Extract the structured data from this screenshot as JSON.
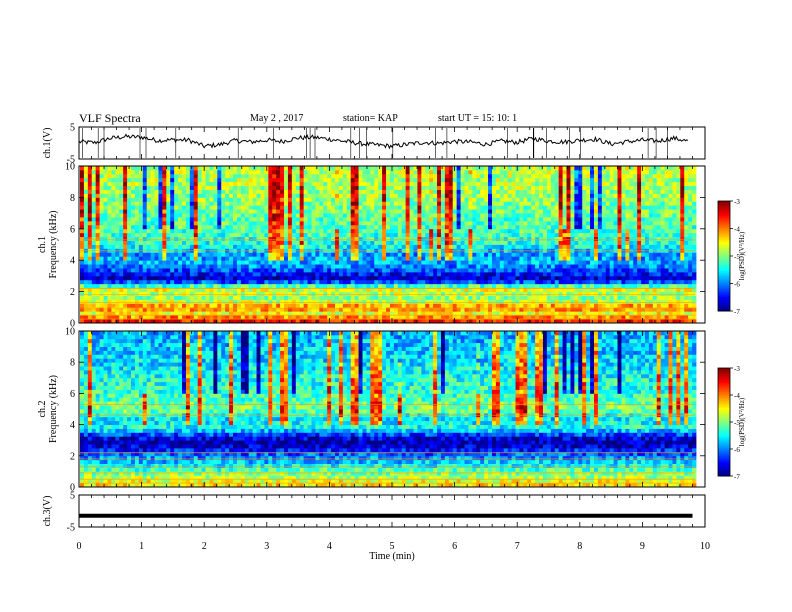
{
  "header": {
    "title": "VLF Spectra",
    "date": "May 2 , 2017",
    "station": "station= KAP",
    "start": "start UT = 15: 10: 1"
  },
  "chart_data": [
    {
      "type": "line",
      "panel": "ch1-waveform",
      "ylabel": "ch.1(V)",
      "ylim": [
        -5,
        5
      ],
      "yticks": [
        "5",
        "-5"
      ],
      "xlim": [
        0,
        10
      ],
      "series": [
        {
          "x": [
            0,
            0.25,
            0.5,
            0.75,
            1,
            1.25,
            1.5,
            1.75,
            2,
            2.25,
            2.5,
            2.75,
            3,
            3.25,
            3.5,
            3.75,
            4,
            4.25,
            4.5,
            4.75,
            5,
            5.25,
            5.5,
            5.75,
            6,
            6.25,
            6.5,
            6.75,
            7,
            7.25,
            7.5,
            7.75,
            8,
            8.25,
            8.5,
            8.75,
            9,
            9.25,
            9.5,
            9.75
          ],
          "values": [
            0.4,
            0.1,
            1.5,
            2.0,
            1.8,
            0.8,
            1.0,
            0.9,
            -1.0,
            -0.5,
            0.8,
            0.3,
            0.9,
            0.5,
            1.6,
            1.8,
            1.2,
            0.5,
            -0.2,
            -0.6,
            -1.0,
            -0.4,
            0.2,
            -0.1,
            0.5,
            0.3,
            -0.4,
            0.6,
            0.2,
            1.4,
            0.6,
            0.3,
            0.9,
            1.2,
            -0.3,
            0.4,
            0.9,
            0.6,
            1.5,
            0.5
          ]
        }
      ]
    },
    {
      "type": "heatmap",
      "panel": "ch1-spectrogram",
      "ylabel": "ch.1",
      "ylabel2": "Frequency (kHz)",
      "ylim": [
        0,
        10
      ],
      "yticks": [
        "0",
        "2",
        "4",
        "6",
        "8",
        "10"
      ],
      "xlim": [
        0,
        10
      ],
      "colorbar": {
        "label": "log(PSD)(V²/Hz)",
        "range": [
          -7,
          -3
        ],
        "ticks": [
          "-3",
          "-4",
          "-5",
          "-6",
          "-7"
        ]
      },
      "band_profile": [
        {
          "f": 0.2,
          "level": -3.6
        },
        {
          "f": 0.6,
          "level": -4.6
        },
        {
          "f": 1.0,
          "level": -3.9
        },
        {
          "f": 1.5,
          "level": -5.0
        },
        {
          "f": 2.2,
          "level": -4.6
        },
        {
          "f": 2.8,
          "level": -6.8
        },
        {
          "f": 3.2,
          "level": -6.4
        },
        {
          "f": 3.8,
          "level": -5.8
        },
        {
          "f": 4.4,
          "level": -5.9
        },
        {
          "f": 5.0,
          "level": -5.4
        },
        {
          "f": 6.0,
          "level": -5.2
        },
        {
          "f": 7.0,
          "level": -5.1
        },
        {
          "f": 8.0,
          "level": -4.9
        },
        {
          "f": 9.0,
          "level": -4.8
        },
        {
          "f": 10.0,
          "level": -4.8
        }
      ]
    },
    {
      "type": "heatmap",
      "panel": "ch2-spectrogram",
      "ylabel": "ch.2",
      "ylabel2": "Frequency (kHz)",
      "ylim": [
        0,
        10
      ],
      "yticks": [
        "0",
        "2",
        "4",
        "6",
        "8",
        "10"
      ],
      "xlim": [
        0,
        10
      ],
      "colorbar": {
        "label": "log(PSD)(V²/Hz)",
        "range": [
          -7,
          -3
        ],
        "ticks": [
          "-3",
          "-4",
          "-5",
          "-6",
          "-7"
        ]
      },
      "band_profile": [
        {
          "f": 0.2,
          "level": -4.4
        },
        {
          "f": 0.6,
          "level": -4.8
        },
        {
          "f": 1.0,
          "level": -5.1
        },
        {
          "f": 1.5,
          "level": -5.6
        },
        {
          "f": 2.2,
          "level": -6.2
        },
        {
          "f": 2.8,
          "level": -6.9
        },
        {
          "f": 3.2,
          "level": -6.6
        },
        {
          "f": 3.8,
          "level": -5.4
        },
        {
          "f": 4.4,
          "level": -5.6
        },
        {
          "f": 5.0,
          "level": -5.0
        },
        {
          "f": 6.0,
          "level": -5.3
        },
        {
          "f": 7.0,
          "level": -5.4
        },
        {
          "f": 8.0,
          "level": -5.6
        },
        {
          "f": 9.0,
          "level": -5.7
        },
        {
          "f": 10.0,
          "level": -5.8
        }
      ]
    },
    {
      "type": "line",
      "panel": "ch3-waveform",
      "ylabel": "ch.3(V)",
      "ylim": [
        -5,
        5
      ],
      "yticks": [
        "5",
        "-5"
      ],
      "xlim": [
        0,
        10
      ],
      "series": [
        {
          "x": [
            0,
            9.8
          ],
          "values": [
            -1.5,
            -1.5
          ]
        }
      ]
    }
  ],
  "xaxis": {
    "label": "Time (min)",
    "ticks": [
      "0",
      "1",
      "2",
      "3",
      "4",
      "5",
      "6",
      "7",
      "8",
      "9",
      "10"
    ]
  }
}
